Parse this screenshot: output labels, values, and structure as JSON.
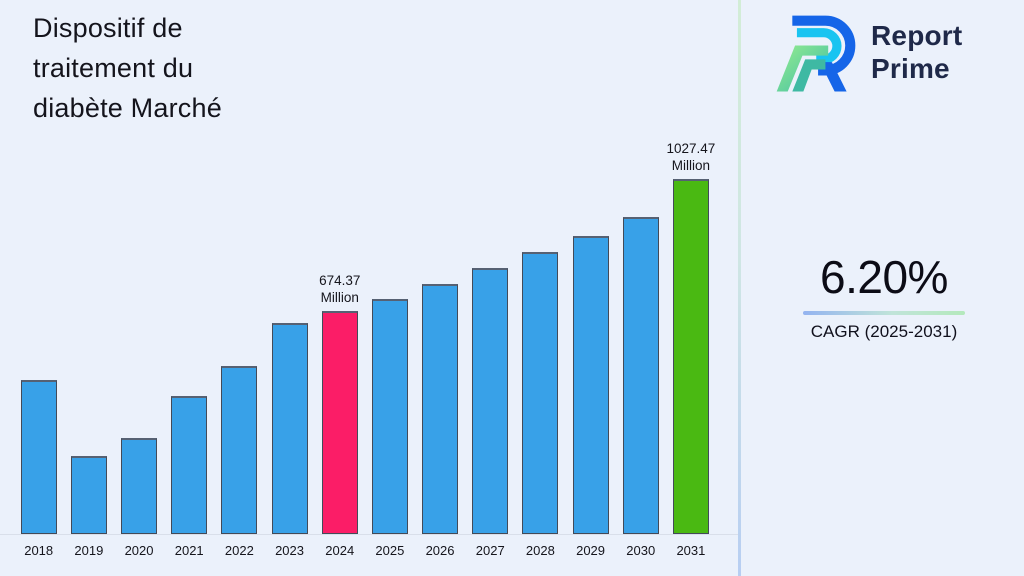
{
  "header": {
    "title": "Dispositif de\ntraitement du\ndiabète Marché"
  },
  "brand": {
    "logo_icon": "report-prime-logo",
    "name_line1": "Report",
    "name_line2": "Prime",
    "text_color": "#1f2949"
  },
  "stat": {
    "value": "6.20%",
    "label": "CAGR (2025-2031)",
    "underline_gradient": [
      "#93b3f0",
      "#b4e9bc"
    ]
  },
  "chart_data": {
    "type": "bar",
    "title": "Dispositif de traitement du diabète Marché",
    "categories": [
      "2018",
      "2019",
      "2020",
      "2021",
      "2022",
      "2023",
      "2024",
      "2025",
      "2026",
      "2027",
      "2028",
      "2029",
      "2030",
      "2031"
    ],
    "values": [
      489,
      286,
      333,
      446,
      526,
      641,
      674.37,
      706,
      748,
      790,
      833,
      875,
      927,
      1027.47
    ],
    "unit": "Million",
    "xlabel": "",
    "ylabel": "",
    "ylim": [
      76.5,
      1080
    ],
    "grid": false,
    "legend": false,
    "bar_color_default": "#38a1e8",
    "highlighted_bars": [
      {
        "category": "2024",
        "color": "#fb1d67",
        "label_line1": "674.37",
        "label_line2": "Million"
      },
      {
        "category": "2031",
        "color": "#4ab912",
        "label_line1": "1027.47",
        "label_line2": "Million"
      }
    ]
  }
}
